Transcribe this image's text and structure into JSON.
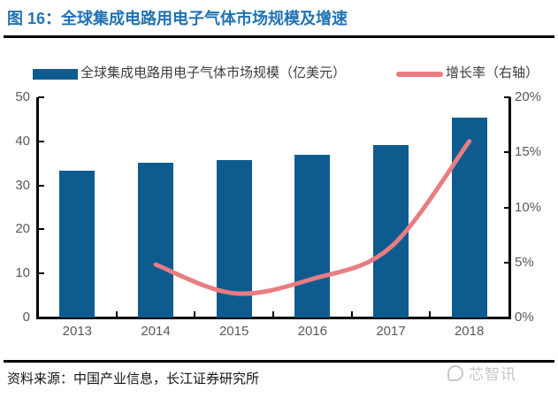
{
  "header": {
    "title": "图 16：全球集成电路用电子气体市场规模及增速"
  },
  "chart_data": {
    "type": "bar+line",
    "title": "全球集成电路用电子气体市场规模及增速",
    "categories": [
      "2013",
      "2014",
      "2015",
      "2016",
      "2017",
      "2018"
    ],
    "series": [
      {
        "name": "全球集成电路用电子气体市场规模（亿美元）",
        "type": "bar",
        "axis": "left",
        "color": "#0E5C8F",
        "values": [
          33.4,
          35.2,
          35.8,
          37.0,
          39.2,
          45.4
        ]
      },
      {
        "name": "增长率（右轴）",
        "type": "line",
        "axis": "right",
        "color": "#E87D82",
        "values": [
          null,
          4.8,
          2.2,
          3.5,
          6.4,
          16.0
        ]
      }
    ],
    "left_axis": {
      "lim": [
        0,
        50
      ],
      "tick_values": [
        0,
        10,
        20,
        30,
        40,
        50
      ],
      "tick_labels": [
        "0",
        "10",
        "20",
        "30",
        "40",
        "50"
      ]
    },
    "right_axis": {
      "lim": [
        0,
        20
      ],
      "tick_values": [
        0,
        5,
        10,
        15,
        20
      ],
      "tick_labels": [
        "0%",
        "5%",
        "10%",
        "15%",
        "20%"
      ]
    },
    "grid": false,
    "legend_position": "top"
  },
  "footer": {
    "source": "资料来源：中国产业信息，长江证券研究所",
    "watermark": "芯智讯"
  },
  "colors": {
    "title": "#2173B3",
    "bar": "#0E5C8F",
    "line": "#E87D82",
    "axis": "#000000",
    "tick_label": "#595959"
  }
}
